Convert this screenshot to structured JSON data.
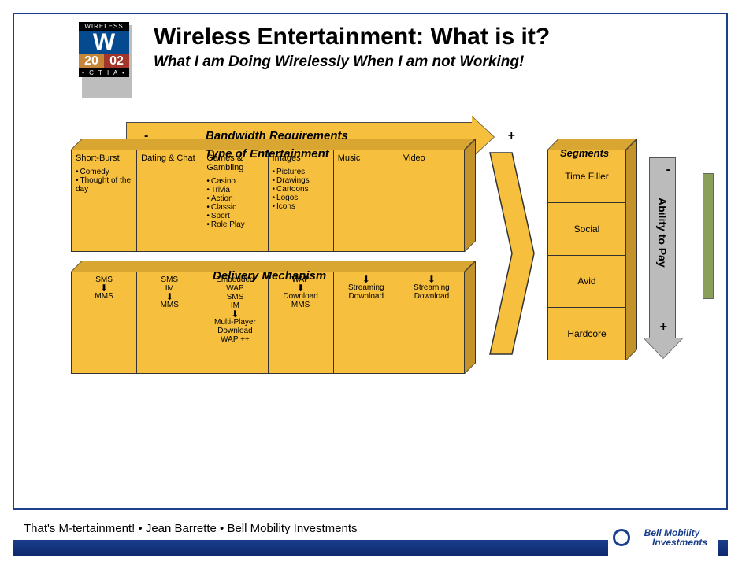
{
  "colors": {
    "blue_border": "#1d3f8b",
    "block_face": "#f6c03e",
    "block_top": "#d9a632",
    "block_side": "#c4922a",
    "grey_arrow": "#bbbbbb",
    "green_bar": "#8aa05a",
    "footer_bar": "#1b3e8c"
  },
  "logo": {
    "top": "WIRELESS",
    "letter": "W",
    "year_a": "20",
    "year_b": "02",
    "bottom": "• C T I A •"
  },
  "title": "Wireless Entertainment: What is it?",
  "subtitle": "What I am Doing Wirelessly When I am not Working!",
  "bandwidth": {
    "label": "Bandwidth Requirements",
    "minus": "-",
    "plus": "+"
  },
  "type_block": {
    "header": "Type of Entertainment",
    "cols": [
      {
        "h": "Short-Burst",
        "items": [
          "Comedy",
          "Thought of the day"
        ]
      },
      {
        "h": "Dating & Chat",
        "items": []
      },
      {
        "h": "Games & Gambling",
        "items": [
          "Casino",
          "Trivia",
          "Action",
          "Classic",
          "Sport",
          "Role Play"
        ]
      },
      {
        "h": "Images",
        "items": [
          "Pictures",
          "Drawings",
          "Cartoons",
          "Logos",
          "Icons"
        ]
      },
      {
        "h": "Music",
        "items": []
      },
      {
        "h": "Video",
        "items": []
      }
    ]
  },
  "deliv_block": {
    "header": "Delivery Mechanism",
    "cols": [
      {
        "steps": [
          "SMS",
          "↓",
          "MMS"
        ]
      },
      {
        "steps": [
          "SMS",
          "IM",
          "↓",
          "MMS"
        ]
      },
      {
        "steps": [
          "Embedded",
          "WAP",
          "SMS",
          "IM",
          "↓",
          "Multi-Player",
          "Download",
          "WAP ++"
        ]
      },
      {
        "steps": [
          "WAP",
          "↓",
          "Download",
          "MMS"
        ]
      },
      {
        "steps": [
          "",
          "↓",
          "Streaming",
          "Download"
        ]
      },
      {
        "steps": [
          "",
          "↓",
          "Streaming",
          "Download"
        ]
      }
    ]
  },
  "segments": {
    "header": "Segments",
    "rows": [
      "Time Filler",
      "Social",
      "Avid",
      "Hardcore"
    ]
  },
  "pay_arrow": {
    "label": "Ability to Pay",
    "minus": "-",
    "plus": "+"
  },
  "footer": "That's M-tertainment! • Jean Barrette • Bell Mobility Investments",
  "bell": {
    "line1": "Bell Mobility",
    "line2": "Investments"
  }
}
